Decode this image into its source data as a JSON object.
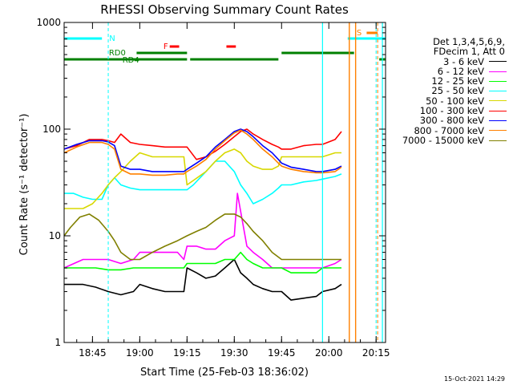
{
  "chart_data": {
    "type": "line",
    "title": "RHESSI Observing Summary Count Rates",
    "xlabel": "Start Time (25-Feb-03 18:36:02)",
    "ylabel": "Count Rate (s⁻¹ detector⁻¹)",
    "x_units": "minutes after 18:36:02",
    "xlim": [
      0,
      102
    ],
    "ylim": [
      1,
      1000
    ],
    "yscale": "log",
    "x_ticks": [
      {
        "label": "18:45",
        "value": 9
      },
      {
        "label": "19:00",
        "value": 24
      },
      {
        "label": "19:15",
        "value": 39
      },
      {
        "label": "19:30",
        "value": 54
      },
      {
        "label": "19:45",
        "value": 69
      },
      {
        "label": "20:00",
        "value": 84
      },
      {
        "label": "20:15",
        "value": 99
      }
    ],
    "y_ticks": [
      {
        "label": "1",
        "value": 1
      },
      {
        "label": "10",
        "value": 10
      },
      {
        "label": "100",
        "value": 100
      },
      {
        "label": "1000",
        "value": 1000
      }
    ],
    "legend_header": [
      "Det 1,3,4,5,6,9,",
      "FDecim 1, Att 0"
    ],
    "legend_placement": "right",
    "series": [
      {
        "name": "3 - 6 keV",
        "color": "#000000",
        "x": [
          0,
          6,
          10,
          14,
          18,
          22,
          24,
          28,
          32,
          36,
          38,
          39,
          42,
          45,
          48,
          51,
          54,
          56,
          58,
          60,
          63,
          66,
          69,
          72,
          76,
          80,
          82,
          86,
          88
        ],
        "y": [
          3.5,
          3.5,
          3.3,
          3,
          2.8,
          3,
          3.5,
          3.2,
          3,
          3,
          3,
          5,
          4.5,
          4,
          4.2,
          5,
          6,
          4.5,
          4,
          3.5,
          3.2,
          3,
          3,
          2.5,
          2.6,
          2.7,
          3,
          3.2,
          3.5
        ]
      },
      {
        "name": "6 - 12 keV",
        "color": "#ff00ff",
        "x": [
          0,
          6,
          10,
          14,
          18,
          22,
          24,
          28,
          32,
          36,
          38,
          39,
          42,
          45,
          48,
          51,
          54,
          55,
          58,
          60,
          63,
          66,
          69,
          72,
          76,
          80,
          82,
          86,
          88
        ],
        "y": [
          5,
          6,
          6,
          6,
          5.5,
          6,
          7,
          7,
          7,
          7,
          6,
          8,
          8,
          7.5,
          7.5,
          9,
          10,
          25,
          8,
          7,
          6,
          5,
          5,
          5,
          5,
          5,
          5,
          5.5,
          6
        ]
      },
      {
        "name": "12 - 25 keV",
        "color": "#00ff00",
        "x": [
          0,
          6,
          10,
          14,
          18,
          22,
          24,
          28,
          32,
          36,
          38,
          39,
          42,
          45,
          48,
          51,
          54,
          56,
          58,
          60,
          63,
          66,
          69,
          72,
          76,
          80,
          82,
          86,
          88
        ],
        "y": [
          5,
          5,
          5,
          4.8,
          4.8,
          5,
          5,
          5,
          5,
          5,
          5,
          5.5,
          5.5,
          5.5,
          5.5,
          6,
          6,
          7,
          6,
          5.5,
          5,
          5,
          5,
          4.5,
          4.5,
          4.5,
          5,
          5,
          5
        ]
      },
      {
        "name": "25 - 50 keV",
        "color": "#00ffff",
        "x": [
          0,
          3,
          6,
          9,
          12,
          14,
          16,
          18,
          21,
          24,
          28,
          32,
          36,
          38,
          39,
          41,
          45,
          48,
          51,
          54,
          56,
          58,
          60,
          63,
          66,
          68,
          69,
          72,
          76,
          80,
          82,
          86,
          88
        ],
        "y": [
          25,
          25,
          23,
          22,
          22,
          30,
          35,
          30,
          28,
          27,
          27,
          27,
          27,
          27,
          27,
          30,
          40,
          50,
          50,
          40,
          30,
          25,
          20,
          22,
          25,
          28,
          30,
          30,
          32,
          33,
          34,
          36,
          38
        ]
      },
      {
        "name": "50 - 100 keV",
        "color": "#d8d800",
        "x": [
          0,
          3,
          6,
          9,
          12,
          14,
          16,
          18,
          21,
          24,
          28,
          32,
          36,
          38,
          39,
          41,
          45,
          48,
          51,
          54,
          56,
          58,
          60,
          63,
          66,
          68,
          69,
          72,
          76,
          80,
          82,
          86,
          88
        ],
        "y": [
          18,
          18,
          18,
          20,
          25,
          30,
          35,
          40,
          50,
          60,
          55,
          55,
          55,
          55,
          30,
          33,
          40,
          50,
          60,
          65,
          60,
          50,
          45,
          42,
          42,
          45,
          55,
          55,
          55,
          55,
          55,
          60,
          60
        ]
      },
      {
        "name": "100 - 300 keV",
        "color": "#ff0000",
        "x": [
          0,
          4,
          8,
          12,
          14,
          16,
          18,
          21,
          24,
          28,
          32,
          36,
          38,
          39,
          42,
          45,
          48,
          51,
          54,
          56,
          58,
          60,
          63,
          66,
          68,
          69,
          72,
          76,
          80,
          82,
          86,
          88
        ],
        "y": [
          65,
          70,
          80,
          80,
          78,
          75,
          90,
          75,
          72,
          70,
          68,
          68,
          68,
          68,
          52,
          55,
          62,
          72,
          85,
          95,
          100,
          90,
          80,
          72,
          68,
          65,
          65,
          70,
          72,
          72,
          80,
          95
        ]
      },
      {
        "name": "300 - 800 keV",
        "color": "#0000ff",
        "x": [
          0,
          4,
          8,
          12,
          14,
          16,
          18,
          21,
          24,
          28,
          32,
          36,
          38,
          39,
          42,
          45,
          48,
          51,
          54,
          56,
          58,
          60,
          63,
          66,
          68,
          69,
          72,
          76,
          80,
          82,
          86,
          88
        ],
        "y": [
          65,
          72,
          78,
          78,
          76,
          70,
          45,
          42,
          42,
          40,
          40,
          40,
          40,
          42,
          48,
          55,
          68,
          80,
          95,
          100,
          95,
          85,
          70,
          60,
          52,
          48,
          44,
          42,
          40,
          40,
          42,
          45
        ]
      },
      {
        "name": "800 - 7000 keV",
        "color": "#ff8000",
        "x": [
          0,
          4,
          8,
          12,
          14,
          16,
          18,
          21,
          24,
          28,
          32,
          36,
          38,
          39,
          42,
          45,
          48,
          51,
          54,
          56,
          58,
          60,
          63,
          66,
          68,
          69,
          72,
          76,
          80,
          82,
          86,
          88
        ],
        "y": [
          60,
          68,
          75,
          75,
          72,
          65,
          42,
          38,
          38,
          37,
          37,
          38,
          38,
          40,
          45,
          52,
          65,
          78,
          92,
          98,
          90,
          80,
          65,
          55,
          48,
          45,
          42,
          40,
          39,
          39,
          40,
          44
        ]
      },
      {
        "name": "7000 - 15000 keV",
        "color": "#808000",
        "x": [
          0,
          2,
          5,
          8,
          11,
          14,
          16,
          18,
          21,
          24,
          28,
          32,
          36,
          39,
          42,
          45,
          48,
          51,
          54,
          56,
          58,
          60,
          63,
          66,
          69,
          72,
          76,
          80,
          82,
          86,
          88
        ],
        "y": [
          10,
          12,
          15,
          16,
          14,
          11,
          9,
          7,
          6,
          6,
          7,
          8,
          9,
          10,
          11,
          12,
          14,
          16,
          16,
          15,
          13,
          11,
          9,
          7,
          6,
          6,
          6,
          6,
          6,
          6,
          6
        ]
      }
    ],
    "annotations": [
      {
        "text": "N",
        "color": "#00ffff"
      },
      {
        "text": "RD0",
        "color": "#008000"
      },
      {
        "text": "RD4",
        "color": "#008000"
      },
      {
        "text": "F",
        "color": "#ff0000"
      },
      {
        "text": "S",
        "color": "#ff8000"
      }
    ],
    "timestamp": "15-Oct-2021 14:29"
  }
}
